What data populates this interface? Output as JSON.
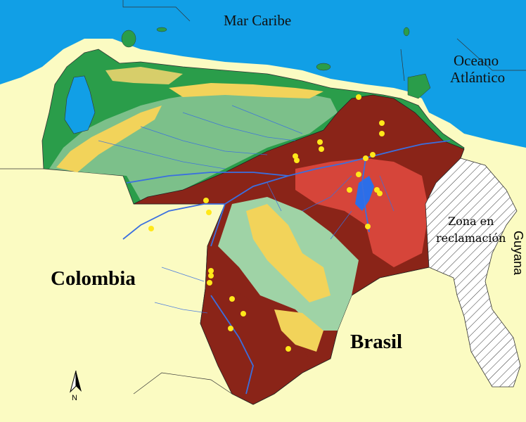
{
  "labels": {
    "sea_caribbean": "Mar Caribe",
    "sea_atlantic_1": "Oceano",
    "sea_atlantic_2": "Atlántico",
    "colombia": "Colombia",
    "brasil": "Brasil",
    "guyana": "Guyana",
    "zona_1": "Zona en",
    "zona_2": "reclamación",
    "north": "N"
  },
  "colors": {
    "sea": "#119fe6",
    "neighbor_land": "#fbfbc2",
    "lowlands": "#2a9d4a",
    "highlands_green": "#7cc08a",
    "uplands_yellow": "#f2d35a",
    "guayana_shield_brown": "#8a2418",
    "tepuis_red": "#d6453a",
    "rivers": "#3a6fe0",
    "points": "#ffe81a"
  },
  "icons": {
    "north_arrow": "north-arrow-icon",
    "points": "yellow-dot-markers"
  }
}
